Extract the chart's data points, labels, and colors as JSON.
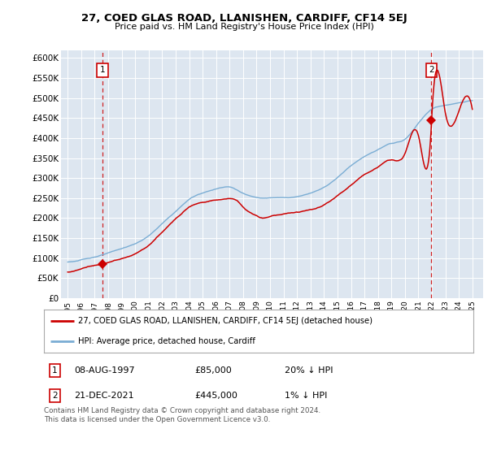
{
  "title": "27, COED GLAS ROAD, LLANISHEN, CARDIFF, CF14 5EJ",
  "subtitle": "Price paid vs. HM Land Registry's House Price Index (HPI)",
  "ylim": [
    0,
    620000
  ],
  "yticks": [
    0,
    50000,
    100000,
    150000,
    200000,
    250000,
    300000,
    350000,
    400000,
    450000,
    500000,
    550000,
    600000
  ],
  "ytick_labels": [
    "£0",
    "£50K",
    "£100K",
    "£150K",
    "£200K",
    "£250K",
    "£300K",
    "£350K",
    "£400K",
    "£450K",
    "£500K",
    "£550K",
    "£600K"
  ],
  "plot_bg_color": "#dde6f0",
  "red_line_color": "#cc0000",
  "blue_line_color": "#7aadd4",
  "marker_color": "#cc0000",
  "point1_x": 1997.6,
  "point1_y": 85000,
  "point2_x": 2021.97,
  "point2_y": 445000,
  "point1_label": "08-AUG-1997",
  "point1_price": "£85,000",
  "point1_hpi": "20% ↓ HPI",
  "point2_label": "21-DEC-2021",
  "point2_price": "£445,000",
  "point2_hpi": "1% ↓ HPI",
  "legend_line1": "27, COED GLAS ROAD, LLANISHEN, CARDIFF, CF14 5EJ (detached house)",
  "legend_line2": "HPI: Average price, detached house, Cardiff",
  "footer": "Contains HM Land Registry data © Crown copyright and database right 2024.\nThis data is licensed under the Open Government Licence v3.0.",
  "xmin": 1994.5,
  "xmax": 2025.8
}
